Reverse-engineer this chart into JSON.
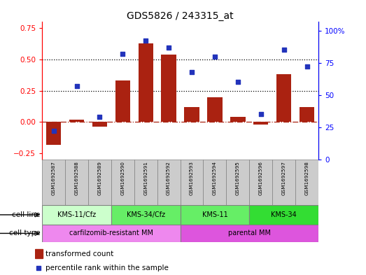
{
  "title": "GDS5826 / 243315_at",
  "samples": [
    "GSM1692587",
    "GSM1692588",
    "GSM1692589",
    "GSM1692590",
    "GSM1692591",
    "GSM1692592",
    "GSM1692593",
    "GSM1692594",
    "GSM1692595",
    "GSM1692596",
    "GSM1692597",
    "GSM1692598"
  ],
  "transformed_count": [
    -0.18,
    0.02,
    -0.04,
    0.33,
    0.63,
    0.54,
    0.12,
    0.2,
    0.04,
    -0.02,
    0.38,
    0.12
  ],
  "percentile_rank": [
    22,
    57,
    33,
    82,
    92,
    87,
    68,
    80,
    60,
    35,
    85,
    72
  ],
  "bar_color": "#aa2211",
  "dot_color": "#2233bb",
  "left_ylim": [
    -0.3,
    0.8
  ],
  "left_yticks": [
    -0.25,
    0.0,
    0.25,
    0.5,
    0.75
  ],
  "right_ylim": [
    0,
    106.67
  ],
  "right_yticks": [
    0,
    25,
    50,
    75,
    100
  ],
  "right_tick_labels": [
    "0",
    "25",
    "50",
    "75",
    "100%"
  ],
  "dotted_lines": [
    0.25,
    0.5
  ],
  "cell_line_groups": [
    {
      "label": "KMS-11/Cfz",
      "start": 0,
      "end": 3,
      "color": "#ccffcc"
    },
    {
      "label": "KMS-34/Cfz",
      "start": 3,
      "end": 6,
      "color": "#66ee66"
    },
    {
      "label": "KMS-11",
      "start": 6,
      "end": 9,
      "color": "#66ee66"
    },
    {
      "label": "KMS-34",
      "start": 9,
      "end": 12,
      "color": "#33dd33"
    }
  ],
  "cell_type_groups": [
    {
      "label": "carfilzomib-resistant MM",
      "start": 0,
      "end": 6,
      "color": "#ee88ee"
    },
    {
      "label": "parental MM",
      "start": 6,
      "end": 12,
      "color": "#dd55dd"
    }
  ],
  "legend_bar_label": "transformed count",
  "legend_dot_label": "percentile rank within the sample",
  "cell_line_label": "cell line",
  "cell_type_label": "cell type",
  "bg_color": "#ffffff",
  "sample_box_color": "#cccccc"
}
